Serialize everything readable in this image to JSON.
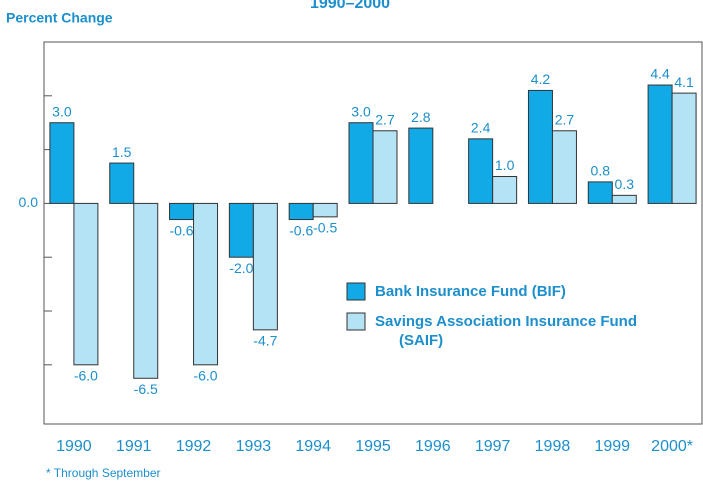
{
  "chart_data": {
    "type": "bar",
    "title": "1990–2000",
    "y_label": "Percent Change",
    "footnote": "* Through September",
    "categories": [
      "1990",
      "1991",
      "1992",
      "1993",
      "1994",
      "1995",
      "1996",
      "1997",
      "1998",
      "1999",
      "2000*"
    ],
    "series": [
      {
        "name": "Bank Insurance Fund  (BIF)",
        "color": "#12aae6",
        "values": [
          3.0,
          1.5,
          -0.6,
          -2.0,
          -0.6,
          3.0,
          2.8,
          2.4,
          4.2,
          0.8,
          4.4
        ],
        "value_labels": [
          "3.0",
          "1.5",
          "-0.6",
          "-2.0",
          "-0.6",
          "3.0",
          "2.8",
          "2.4",
          "4.2",
          "0.8",
          "4.4"
        ]
      },
      {
        "name": "Savings Association Insurance Fund  (SAIF)",
        "color": "#b5e3f6",
        "values": [
          -6.0,
          -6.5,
          -6.0,
          -4.7,
          -0.5,
          2.7,
          null,
          1.0,
          2.7,
          0.3,
          4.1
        ],
        "value_labels": [
          "-6.0",
          "-6.5",
          "-6.0",
          "-4.7",
          "-0.5",
          "2.7",
          null,
          "1.0",
          "2.7",
          "0.3",
          "4.1"
        ]
      }
    ],
    "ylim": [
      -8.2,
      6
    ],
    "yticks": [
      {
        "value": 0,
        "label": "0.0"
      }
    ],
    "minor_yticks": [
      -6,
      -4,
      -2,
      2,
      4
    ],
    "legend": "lower-right"
  }
}
